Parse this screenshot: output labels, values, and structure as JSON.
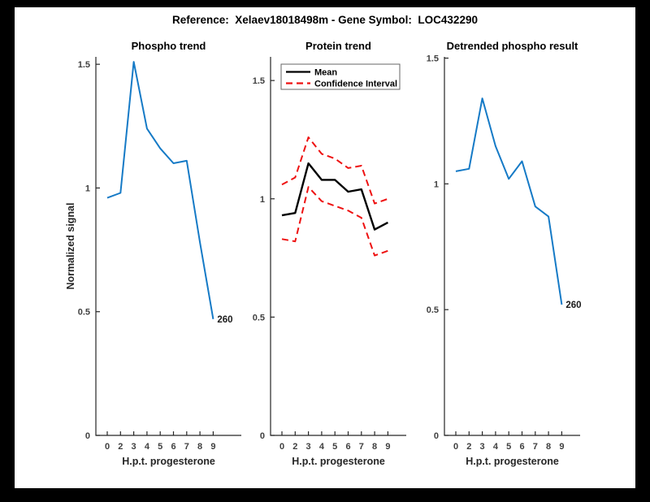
{
  "window": {
    "frame_color": "#000000",
    "figure_background": "#ffffff"
  },
  "header": {
    "title": "Reference:  Xelaev18018498m - Gene Symbol:  LOC432290"
  },
  "colors": {
    "phospho_line": "#157ac6",
    "mean_line": "#000000",
    "confidence_line": "#ee1111",
    "axis": "#262626",
    "tick_label": "#404040",
    "axis_label": "#262626",
    "title": "#000000"
  },
  "chart_data": [
    {
      "type": "line",
      "title": "Phospho trend",
      "xlabel": "H.p.t. progesterone",
      "ylabel": "Normalized signal",
      "categories": [
        "0",
        "2",
        "3",
        "4",
        "5",
        "6",
        "7",
        "8",
        "9"
      ],
      "y_ticks": [
        "0",
        "0.5",
        "1",
        "1.5"
      ],
      "y_tick_values": [
        0,
        0.5,
        1,
        1.5
      ],
      "ylim": [
        0,
        1.53
      ],
      "grid": false,
      "series": [
        {
          "name": "phospho",
          "color_key": "phospho_line",
          "style": "solid",
          "values": [
            0.96,
            0.98,
            1.51,
            1.24,
            1.16,
            1.1,
            1.11,
            0.78,
            0.47
          ]
        }
      ],
      "end_label": "260",
      "legend": null
    },
    {
      "type": "line",
      "title": "Protein trend",
      "xlabel": "H.p.t. progesterone",
      "ylabel": null,
      "categories": [
        "0",
        "2",
        "3",
        "4",
        "5",
        "6",
        "7",
        "8",
        "9"
      ],
      "y_ticks": [
        "0",
        "0.5",
        "1",
        "1.5"
      ],
      "y_tick_values": [
        0,
        0.5,
        1,
        1.5
      ],
      "ylim": [
        0,
        1.6
      ],
      "grid": false,
      "series": [
        {
          "name": "mean",
          "color_key": "mean_line",
          "style": "solid",
          "values": [
            0.93,
            0.94,
            1.15,
            1.08,
            1.08,
            1.03,
            1.04,
            0.87,
            0.9
          ]
        },
        {
          "name": "ci-upper",
          "color_key": "confidence_line",
          "style": "dashed",
          "values": [
            1.06,
            1.09,
            1.26,
            1.19,
            1.17,
            1.13,
            1.14,
            0.98,
            1.0
          ]
        },
        {
          "name": "ci-lower",
          "color_key": "confidence_line",
          "style": "dashed",
          "values": [
            0.83,
            0.82,
            1.05,
            0.99,
            0.97,
            0.95,
            0.92,
            0.76,
            0.78
          ]
        }
      ],
      "end_label": null,
      "legend": {
        "position": "northwest",
        "entries": [
          {
            "label": "Mean",
            "color_key": "mean_line",
            "style": "solid"
          },
          {
            "label": "Confidence Interval",
            "color_key": "confidence_line",
            "style": "dashed"
          }
        ]
      }
    },
    {
      "type": "line",
      "title": "Detrended phospho result",
      "xlabel": "H.p.t. progesterone",
      "ylabel": null,
      "categories": [
        "0",
        "2",
        "3",
        "4",
        "5",
        "6",
        "7",
        "8",
        "9"
      ],
      "y_ticks": [
        "0",
        "0.5",
        "1",
        "1.5"
      ],
      "y_tick_values": [
        0,
        0.5,
        1,
        1.5
      ],
      "ylim": [
        0,
        1.505
      ],
      "grid": false,
      "series": [
        {
          "name": "detrended-phospho",
          "color_key": "phospho_line",
          "style": "solid",
          "values": [
            1.05,
            1.06,
            1.34,
            1.15,
            1.02,
            1.09,
            0.91,
            0.87,
            0.52
          ]
        }
      ],
      "end_label": "260",
      "legend": null
    }
  ]
}
